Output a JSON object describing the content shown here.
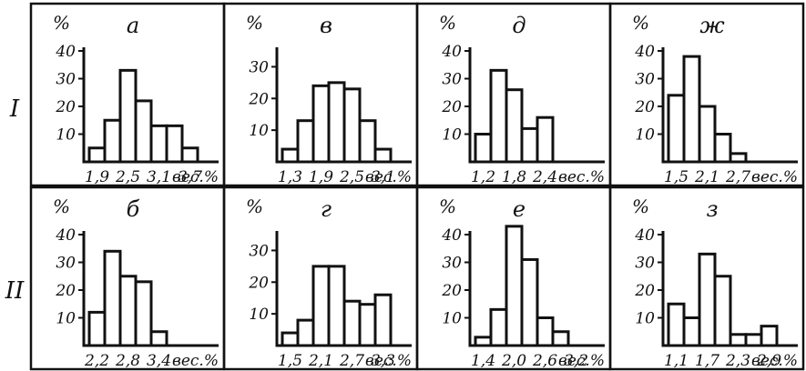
{
  "row_labels": [
    "I",
    "II"
  ],
  "chart_data": [
    {
      "type": "bar",
      "row": 0,
      "col": 0,
      "title": "а",
      "ylabel": "%",
      "xlabel": "вес.%",
      "y_ticks": [
        10,
        20,
        30,
        40
      ],
      "ylim": [
        0,
        40
      ],
      "x_ticks": [
        "1,9",
        "2,5",
        "3,1",
        "3,7"
      ],
      "values": [
        5,
        15,
        33,
        22,
        13,
        13,
        5
      ]
    },
    {
      "type": "bar",
      "row": 0,
      "col": 1,
      "title": "в",
      "ylabel": "%",
      "xlabel": "вес.%",
      "y_ticks": [
        10,
        20,
        30
      ],
      "ylim": [
        0,
        35
      ],
      "x_ticks": [
        "1,3",
        "1,9",
        "2,5",
        "3,1"
      ],
      "values": [
        4,
        13,
        24,
        25,
        23,
        13,
        4
      ]
    },
    {
      "type": "bar",
      "row": 0,
      "col": 2,
      "title": "д",
      "ylabel": "%",
      "xlabel": "вес.%",
      "y_ticks": [
        10,
        20,
        30,
        40
      ],
      "ylim": [
        0,
        40
      ],
      "x_ticks": [
        "1,2",
        "1,8",
        "2,4"
      ],
      "values": [
        10,
        33,
        26,
        12,
        16
      ]
    },
    {
      "type": "bar",
      "row": 0,
      "col": 3,
      "title": "ж",
      "ylabel": "%",
      "xlabel": "вес.%",
      "y_ticks": [
        10,
        20,
        30,
        40
      ],
      "ylim": [
        0,
        40
      ],
      "x_ticks": [
        "1,5",
        "2,1",
        "2,7"
      ],
      "values": [
        24,
        38,
        20,
        10,
        3
      ]
    },
    {
      "type": "bar",
      "row": 1,
      "col": 0,
      "title": "б",
      "ylabel": "%",
      "xlabel": "вес.%",
      "y_ticks": [
        10,
        20,
        30,
        40
      ],
      "ylim": [
        0,
        40
      ],
      "x_ticks": [
        "2,2",
        "2,8",
        "3,4"
      ],
      "values": [
        12,
        34,
        25,
        23,
        5
      ]
    },
    {
      "type": "bar",
      "row": 1,
      "col": 1,
      "title": "г",
      "ylabel": "%",
      "xlabel": "вес.%",
      "y_ticks": [
        10,
        20,
        30
      ],
      "ylim": [
        0,
        35
      ],
      "x_ticks": [
        "1,5",
        "2,1",
        "2,7",
        "3,3"
      ],
      "values": [
        4,
        8,
        25,
        25,
        14,
        13,
        16
      ]
    },
    {
      "type": "bar",
      "row": 1,
      "col": 2,
      "title": "е",
      "ylabel": "%",
      "xlabel": "вес.%",
      "y_ticks": [
        10,
        20,
        30,
        40
      ],
      "ylim": [
        0,
        40
      ],
      "x_ticks": [
        "1,4",
        "2,0",
        "2,6",
        "3,2"
      ],
      "values": [
        3,
        13,
        43,
        31,
        10,
        5
      ]
    },
    {
      "type": "bar",
      "row": 1,
      "col": 3,
      "title": "з",
      "ylabel": "%",
      "xlabel": "вес.%",
      "y_ticks": [
        10,
        20,
        30,
        40
      ],
      "ylim": [
        0,
        40
      ],
      "x_ticks": [
        "1,1",
        "1,7",
        "2,3",
        "2,9"
      ],
      "values": [
        15,
        10,
        33,
        25,
        4,
        4,
        7
      ]
    }
  ]
}
